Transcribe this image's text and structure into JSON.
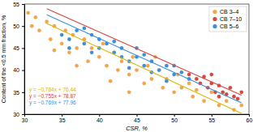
{
  "chart_data": {
    "type": "scatter",
    "x_label": "CSR, %",
    "y_label": "Content of the <0.5 mm fraction, %",
    "xlim": [
      30,
      60
    ],
    "xticks": [
      30,
      35,
      40,
      45,
      50,
      55,
      60
    ],
    "ylim": [
      30,
      55
    ],
    "yticks": [
      30,
      35,
      40,
      45,
      50,
      55
    ],
    "legend": "top-right",
    "series": [
      {
        "name": "CB 3–4",
        "color": "#f2a54a",
        "type": "scatter",
        "marker": "circle",
        "x": [
          30.5,
          31,
          31.5,
          32,
          33,
          33.5,
          34,
          35,
          35.5,
          36,
          36.5,
          37,
          38,
          38.5,
          39,
          40,
          40.5,
          41,
          42,
          42.5,
          43,
          44,
          44.5,
          45,
          46,
          46.5,
          47,
          48,
          48.5,
          49,
          50,
          50.5,
          51,
          52,
          52.5,
          53,
          54,
          55,
          56,
          57,
          58,
          59,
          41.5,
          44,
          37,
          34,
          47.5
        ],
        "values": [
          53,
          50,
          52,
          49,
          51,
          47,
          50,
          46,
          49,
          44,
          48,
          45,
          47,
          42,
          45,
          43,
          46,
          41,
          44,
          40,
          42,
          39,
          43,
          40,
          37,
          41,
          38,
          40,
          36,
          38,
          35,
          39,
          36,
          37,
          34,
          35.5,
          33,
          35,
          32,
          33,
          31,
          32,
          37.5,
          35,
          41,
          44.5,
          43
        ]
      },
      {
        "name": "CB 7–10",
        "color": "#d8453c",
        "type": "scatter",
        "marker": "circle",
        "x": [
          52,
          53,
          53.5,
          54,
          54.5,
          55,
          55.5,
          56,
          56.5,
          57,
          57.5,
          58,
          58.5,
          59,
          55,
          56
        ],
        "values": [
          39,
          38,
          37,
          38.5,
          36,
          37,
          35,
          36.5,
          35,
          34.5,
          36,
          34,
          33.5,
          35,
          39,
          34
        ]
      },
      {
        "name": "CB 5–6",
        "color": "#3b8fd8",
        "type": "scatter",
        "marker": "circle",
        "x": [
          35,
          36,
          37,
          38,
          39,
          40,
          41,
          42,
          43,
          44,
          45,
          46,
          47,
          48,
          49,
          50,
          51,
          52,
          40,
          43,
          45,
          47,
          39,
          42,
          44,
          49,
          38,
          46,
          50,
          36
        ],
        "values": [
          48,
          47,
          49,
          46,
          48,
          45,
          46,
          44,
          45,
          42,
          43,
          41,
          42,
          40,
          41,
          39,
          39.5,
          38,
          47,
          43,
          45,
          39.5,
          44,
          46.5,
          40.5,
          37.5,
          49.5,
          43.5,
          41,
          45
        ]
      },
      {
        "color": "#e0b400",
        "type": "line",
        "line_style": "solid",
        "x": [
          33,
          59
        ],
        "values": [
          50.568,
          30.184
        ]
      },
      {
        "color": "#d8453c",
        "type": "line",
        "line_style": "solid",
        "x": [
          33,
          59
        ],
        "values": [
          53.955,
          34.325
        ]
      },
      {
        "color": "#3b8fd8",
        "type": "line",
        "line_style": "solid",
        "x": [
          33,
          59
        ],
        "values": [
          52.583,
          32.589
        ]
      }
    ],
    "annotations": [
      {
        "text": "y = −0.784x + 76.44",
        "color": "#e0b400"
      },
      {
        "text": "y = −0.755x + 78.87",
        "color": "#d8453c"
      },
      {
        "text": "y = −0.769x + 77.96",
        "color": "#3b8fd8"
      }
    ]
  }
}
